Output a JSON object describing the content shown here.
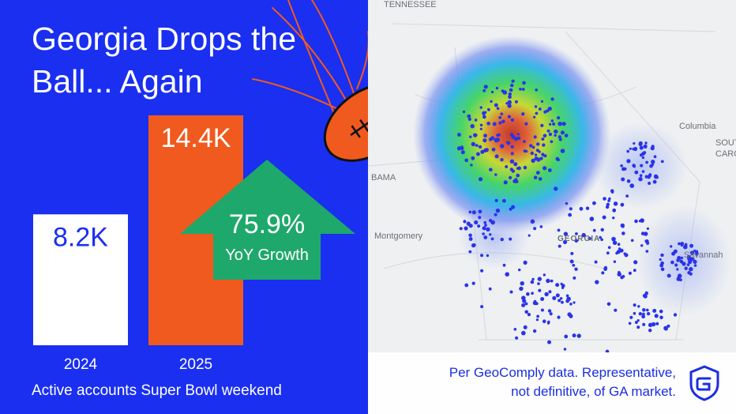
{
  "title": "Georgia Drops the Ball... Again",
  "caption": "Active accounts Super Bowl weekend",
  "chart_data": {
    "type": "bar",
    "title": "Georgia Drops the Ball... Again",
    "categories": [
      "2024",
      "2025"
    ],
    "values": [
      8.2,
      14.4
    ],
    "value_labels": [
      "8.2K",
      "14.4K"
    ],
    "unit": "K",
    "xlabel": "",
    "ylabel": "",
    "ylim": [
      0,
      14.4
    ],
    "grid": false,
    "bar_colors": [
      "#ffffff",
      "#f05a1e"
    ],
    "value_label_colors": [
      "#1a2ff0",
      "#ffffff"
    ],
    "annotation": {
      "value": "75.9%",
      "label": "YoY Growth",
      "color": "#1fa86b"
    }
  },
  "map": {
    "labels": {
      "tennessee": "TENNESSEE",
      "alabama": "BAMA",
      "montgomery": "Montgomery",
      "georgia": "GEORGIA",
      "columbia": "Columbia",
      "south_carolina_1": "SOUT",
      "south_carolina_2": "CAROL",
      "savannah": "Savannah"
    }
  },
  "footer": {
    "note_line1": "Per GeoComply data. Representative,",
    "note_line2": "not definitive, of GA market."
  },
  "colors": {
    "background": "#1a2ff0",
    "accent_orange": "#f05a1e",
    "accent_green": "#1fa86b",
    "heat_dot": "#2a33e8"
  },
  "icons": {
    "football": "football-icon",
    "brand": "geocomply-shield-icon"
  }
}
